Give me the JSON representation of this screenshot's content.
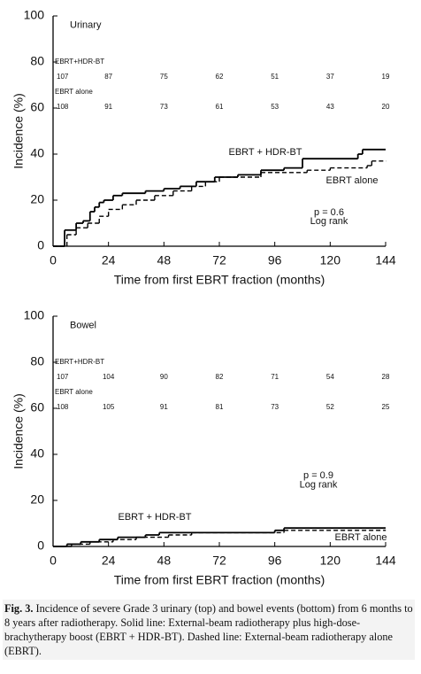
{
  "chart_data": [
    {
      "type": "line",
      "step": "post",
      "title": "Urinary",
      "xlabel": "Time from first EBRT fraction  (months)",
      "ylabel": "Incidence (%)",
      "xlim": [
        0,
        144
      ],
      "ylim": [
        0,
        100
      ],
      "xticks": [
        0,
        24,
        48,
        72,
        96,
        120,
        144
      ],
      "yticks": [
        0,
        20,
        40,
        60,
        80,
        100
      ],
      "series": [
        {
          "name": "EBRT + HDR-BT",
          "color": "#000000",
          "dash": false,
          "x": [
            0,
            5,
            10,
            13,
            16,
            18,
            20,
            22,
            26,
            30,
            40,
            48,
            55,
            62,
            70,
            80,
            90,
            100,
            108,
            132,
            134,
            144
          ],
          "values": [
            0,
            7,
            10,
            11,
            15,
            17,
            19,
            20,
            22,
            23,
            24,
            25,
            26,
            28,
            30,
            31,
            33,
            34,
            38,
            40,
            42,
            42
          ]
        },
        {
          "name": "EBRT alone",
          "color": "#000000",
          "dash": true,
          "x": [
            0,
            6,
            10,
            15,
            20,
            24,
            30,
            36,
            44,
            52,
            60,
            66,
            72,
            90,
            110,
            120,
            136,
            138,
            144
          ],
          "values": [
            0,
            5,
            8,
            10,
            13,
            16,
            18,
            20,
            22,
            24,
            26,
            28,
            30,
            32,
            33,
            34,
            35,
            37,
            37
          ]
        }
      ],
      "at_risk": [
        {
          "name": "EBRT+HDR-BT",
          "values": [
            107,
            87,
            75,
            62,
            51,
            37,
            19
          ]
        },
        {
          "name": "EBRT alone",
          "values": [
            108,
            91,
            73,
            61,
            53,
            43,
            20
          ]
        }
      ],
      "annotations": [
        "p = 0.6",
        "Log rank"
      ]
    },
    {
      "type": "line",
      "step": "post",
      "title": "Bowel",
      "xlabel": "Time from first EBRT fraction  (months)",
      "ylabel": "Incidence (%)",
      "xlim": [
        0,
        144
      ],
      "ylim": [
        0,
        100
      ],
      "xticks": [
        0,
        24,
        48,
        72,
        96,
        120,
        144
      ],
      "yticks": [
        0,
        20,
        40,
        60,
        80,
        100
      ],
      "series": [
        {
          "name": "EBRT + HDR-BT",
          "color": "#000000",
          "dash": false,
          "x": [
            0,
            6,
            12,
            20,
            28,
            40,
            46,
            96,
            100,
            144
          ],
          "values": [
            0,
            1,
            2,
            3,
            4,
            5,
            6,
            7,
            8,
            8
          ]
        },
        {
          "name": "EBRT alone",
          "color": "#000000",
          "dash": true,
          "x": [
            0,
            8,
            16,
            26,
            36,
            50,
            60,
            100,
            144
          ],
          "values": [
            0,
            1,
            2,
            3,
            4,
            5,
            6,
            7,
            7
          ]
        }
      ],
      "at_risk": [
        {
          "name": "EBRT+HDR-BT",
          "values": [
            107,
            104,
            90,
            82,
            71,
            54,
            28
          ]
        },
        {
          "name": "EBRT alone",
          "values": [
            108,
            105,
            91,
            81,
            73,
            52,
            25
          ]
        }
      ],
      "annotations": [
        "p = 0.9",
        "Log rank"
      ]
    }
  ],
  "caption": {
    "label": "Fig. 3.",
    "text": "Incidence of severe Grade 3 urinary (top) and bowel events (bottom) from 6 months to 8 years after radiotherapy. Solid line: External-beam radiotherapy plus high-dose-brachytherapy boost (EBRT + HDR-BT). Dashed line: External-beam radiotherapy alone (EBRT)."
  }
}
